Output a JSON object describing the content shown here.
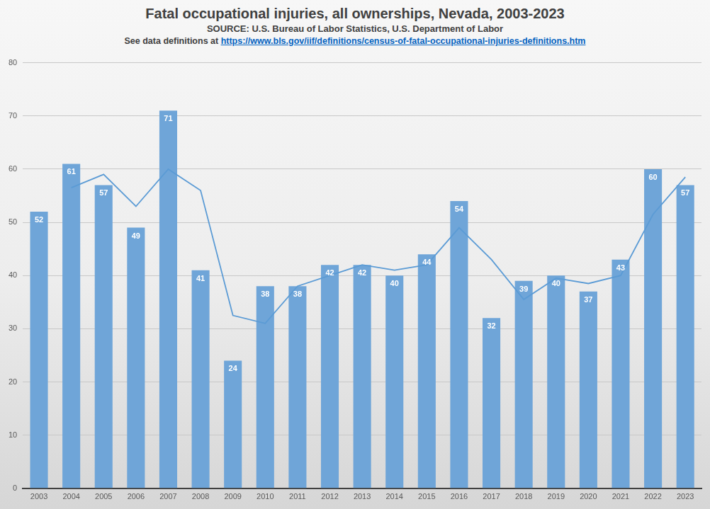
{
  "chart_data": {
    "type": "bar",
    "title": "Fatal occupational injuries, all ownerships, Nevada, 2003-2023",
    "subtitle": "SOURCE: U.S. Bureau of Labor Statistics, U.S. Department of Labor",
    "note": {
      "text": "See data definitions at",
      "link": "https://www.bls.gov/iif/definitions/census-of-fatal-occupational-injuries-definitions.htm"
    },
    "categories": [
      "2003",
      "2004",
      "2005",
      "2006",
      "2007",
      "2008",
      "2009",
      "2010",
      "2011",
      "2012",
      "2013",
      "2014",
      "2015",
      "2016",
      "2017",
      "2018",
      "2019",
      "2020",
      "2021",
      "2022",
      "2023"
    ],
    "series": [
      {
        "type": "bar",
        "color": "#6fa5d8",
        "data_labels": true,
        "values": [
          52,
          61,
          57,
          49,
          71,
          41,
          24,
          38,
          38,
          42,
          42,
          40,
          44,
          54,
          32,
          39,
          40,
          37,
          43,
          60,
          57
        ]
      },
      {
        "type": "line",
        "color": "#5b9bd5",
        "values": [
          null,
          56.5,
          59,
          53,
          60,
          56,
          32.5,
          31,
          38,
          40,
          42,
          41,
          42,
          49,
          43,
          35.5,
          39.5,
          38.5,
          40,
          51.5,
          58.5
        ]
      }
    ],
    "ylim": [
      0,
      80
    ],
    "yticks": [
      0,
      10,
      20,
      30,
      40,
      50,
      60,
      70,
      80
    ],
    "grid": true
  }
}
